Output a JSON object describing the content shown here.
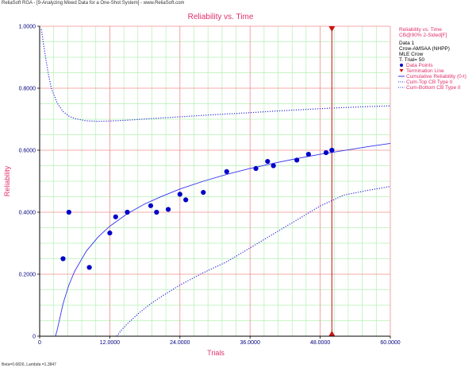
{
  "window_title": "ReliaSoft RGA - [9-Analyzing Mixed Data for a One-Shot System] - www.ReliaSoft.com",
  "footer": "Beta=0.6826, Lambda =1.3847",
  "colors": {
    "plot_bg": "#ffffff",
    "minor_grid": "#b4f0b4",
    "major_grid": "#f08c8c",
    "axis": "#000000",
    "points": "#0000c8",
    "curve": "#3333ee",
    "bounds": "#2a2ad8",
    "termination": "#cc1111",
    "red_text": "#e0306a",
    "navy_text": "#000080"
  },
  "legend": {
    "title": "Reliability vs. Time",
    "subtitle": "CB@90% 2-Sided[F]",
    "info_lines": [
      "Data 1",
      "Crow-AMSAA (NHPP)",
      "MLE Crow",
      "T. Trial= 50"
    ],
    "items": [
      {
        "label": "Data Points",
        "kind": "point",
        "icon": "filled-circle-icon"
      },
      {
        "label": "Termination Line",
        "kind": "termination",
        "icon": "red-triangle-icon"
      },
      {
        "label": "Cumulative Reliability (0-t)",
        "kind": "line",
        "icon": "solid-line-icon"
      },
      {
        "label": "Cum-Top CB Type II",
        "kind": "dotted",
        "icon": "dotted-line-icon"
      },
      {
        "label": "Cum-Bottom CB Type II",
        "kind": "dotted",
        "icon": "dotted-line-icon"
      }
    ]
  },
  "chart_data": {
    "type": "scatter",
    "title": "Reliability vs. Time",
    "xlabel": "Trials",
    "ylabel": "Reliability",
    "xlim": [
      0,
      60
    ],
    "ylim": [
      0,
      1
    ],
    "x_ticks": [
      0,
      12,
      24,
      36,
      48,
      60
    ],
    "x_tick_labels": [
      "0",
      "12.0000",
      "24.0000",
      "36.0000",
      "48.0000",
      "60.0000"
    ],
    "y_ticks": [
      0,
      0.2,
      0.4,
      0.6,
      0.8,
      1.0
    ],
    "y_tick_labels": [
      "0",
      "0.2000",
      "0.4000",
      "0.6000",
      "0.8000",
      "1.0000"
    ],
    "termination_x": 50,
    "grid": true,
    "legend_position": "right",
    "points": [
      {
        "x": 4,
        "y": 0.25
      },
      {
        "x": 5,
        "y": 0.4
      },
      {
        "x": 8.5,
        "y": 0.222
      },
      {
        "x": 12,
        "y": 0.333
      },
      {
        "x": 13,
        "y": 0.385
      },
      {
        "x": 15,
        "y": 0.4
      },
      {
        "x": 19,
        "y": 0.421
      },
      {
        "x": 20,
        "y": 0.4
      },
      {
        "x": 22,
        "y": 0.409
      },
      {
        "x": 24,
        "y": 0.458
      },
      {
        "x": 25,
        "y": 0.44
      },
      {
        "x": 28,
        "y": 0.464
      },
      {
        "x": 32,
        "y": 0.531
      },
      {
        "x": 37,
        "y": 0.541
      },
      {
        "x": 39,
        "y": 0.564
      },
      {
        "x": 40,
        "y": 0.55
      },
      {
        "x": 44,
        "y": 0.568
      },
      {
        "x": 46,
        "y": 0.587
      },
      {
        "x": 49,
        "y": 0.592
      },
      {
        "x": 50,
        "y": 0.6
      }
    ],
    "series": [
      {
        "name": "Cumulative Reliability (0-t)",
        "style": "solid",
        "x": [
          2.7,
          3,
          4,
          5,
          6,
          8,
          10,
          12,
          15,
          18,
          21,
          24,
          28,
          32,
          36,
          40,
          44,
          48,
          52,
          56,
          60
        ],
        "y": [
          0.0,
          0.02,
          0.105,
          0.165,
          0.21,
          0.275,
          0.32,
          0.355,
          0.395,
          0.427,
          0.452,
          0.475,
          0.5,
          0.522,
          0.541,
          0.558,
          0.573,
          0.587,
          0.599,
          0.611,
          0.622
        ]
      },
      {
        "name": "Cum-Top CB Type II",
        "style": "dotted",
        "x": [
          0.3,
          0.6,
          1,
          1.5,
          2,
          3,
          4,
          5,
          6,
          8,
          10,
          12,
          15,
          20,
          25,
          30,
          35,
          40,
          45,
          50,
          55,
          60
        ],
        "y": [
          0.99,
          0.95,
          0.9,
          0.845,
          0.8,
          0.752,
          0.725,
          0.71,
          0.702,
          0.695,
          0.693,
          0.694,
          0.697,
          0.703,
          0.709,
          0.715,
          0.72,
          0.726,
          0.731,
          0.736,
          0.74,
          0.743
        ]
      },
      {
        "name": "Cum-Bottom CB Type II",
        "style": "dotted",
        "x": [
          13.2,
          14,
          15,
          17,
          19,
          21,
          24,
          28,
          32,
          36,
          40,
          44,
          48,
          52,
          56,
          60
        ],
        "y": [
          0.0,
          0.02,
          0.04,
          0.075,
          0.105,
          0.13,
          0.165,
          0.205,
          0.24,
          0.285,
          0.33,
          0.375,
          0.42,
          0.455,
          0.47,
          0.483
        ]
      }
    ]
  }
}
